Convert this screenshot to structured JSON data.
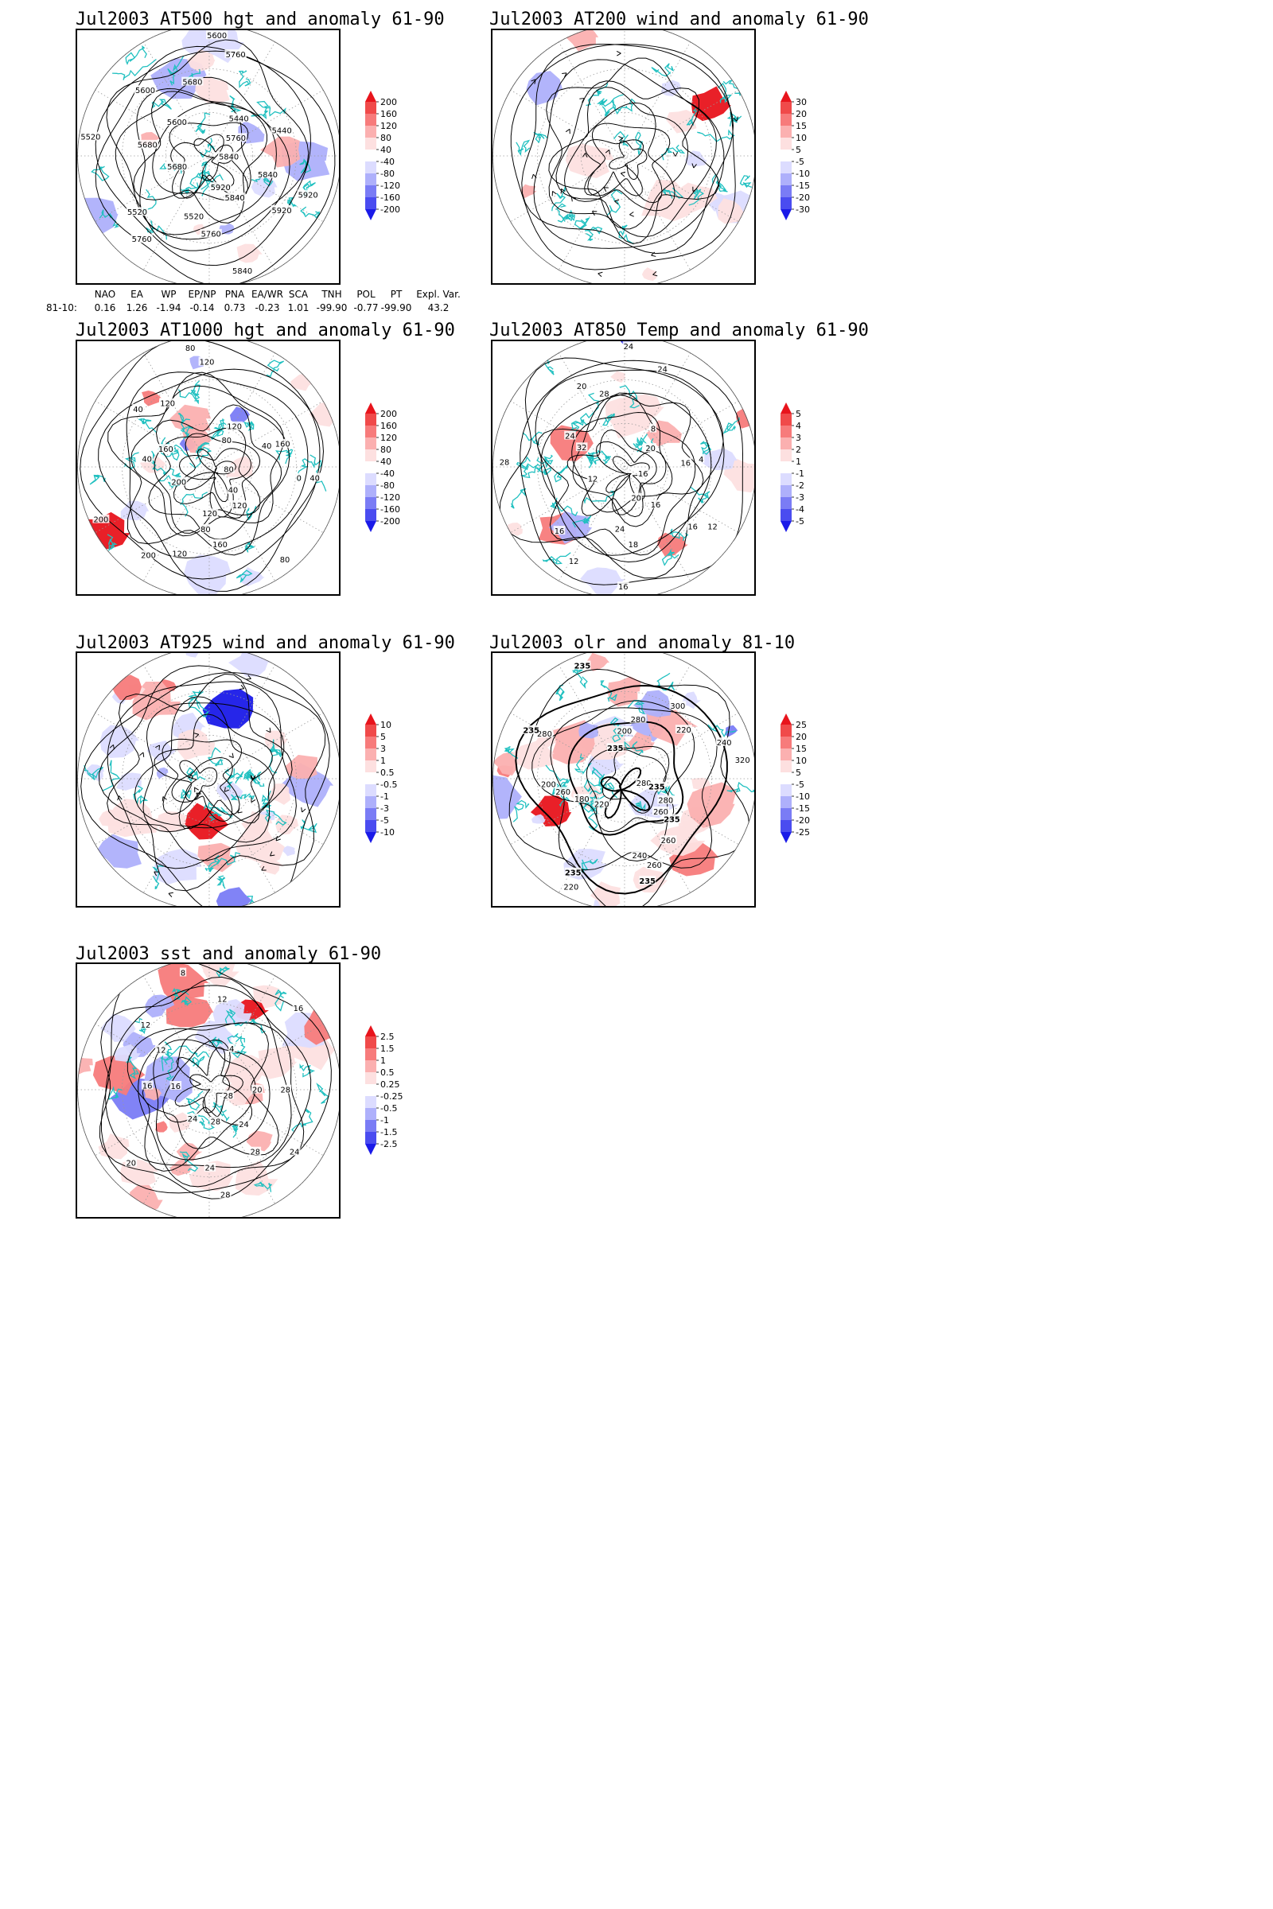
{
  "panels": [
    {
      "id": "p1",
      "title": "Jul2003 AT500 hgt and anomaly 61-90",
      "kind": "contour",
      "contour_labels": [
        "5840",
        "5840",
        "5760",
        "5760",
        "5680",
        "5680",
        "5600",
        "5600",
        "5440",
        "5440",
        "5920",
        "5920",
        "5520",
        "5520",
        "5520",
        "5600",
        "5680",
        "5760",
        "5760",
        "5840",
        "5920",
        "5840"
      ],
      "colorbar": {
        "labels": [
          "200",
          "160",
          "120",
          "80",
          "40",
          "-40",
          "-80",
          "-120",
          "-160",
          "-200"
        ],
        "colors": [
          "#e8141c",
          "#f04a4a",
          "#f77b7b",
          "#fbb0b0",
          "#fde0e0",
          "#ffffff",
          "#dcdcff",
          "#aeb0fb",
          "#7a7cf5",
          "#4a4cf0",
          "#1a1ae8"
        ]
      }
    },
    {
      "id": "p2",
      "title": "Jul2003 AT200 wind and anomaly 61-90",
      "kind": "stream",
      "contour_labels": [],
      "colorbar": {
        "labels": [
          "30",
          "20",
          "15",
          "10",
          "5",
          "-5",
          "-10",
          "-15",
          "-20",
          "-30"
        ],
        "colors": [
          "#e8141c",
          "#f04a4a",
          "#f77b7b",
          "#fbb0b0",
          "#fde0e0",
          "#ffffff",
          "#dcdcff",
          "#aeb0fb",
          "#7a7cf5",
          "#4a4cf0",
          "#1a1ae8"
        ]
      }
    },
    {
      "id": "p3",
      "title": "Jul2003 AT1000 hgt and anomaly 61-90",
      "kind": "contour",
      "contour_labels": [
        "80",
        "120",
        "160",
        "200",
        "200",
        "40",
        "40",
        "80",
        "120",
        "160",
        "40",
        "40",
        "80",
        "120",
        "200",
        "160",
        "120",
        "120",
        "80",
        "40",
        "0",
        "80",
        "120"
      ],
      "colorbar": {
        "labels": [
          "200",
          "160",
          "120",
          "80",
          "40",
          "-40",
          "-80",
          "-120",
          "-160",
          "-200"
        ],
        "colors": [
          "#e8141c",
          "#f04a4a",
          "#f77b7b",
          "#fbb0b0",
          "#fde0e0",
          "#ffffff",
          "#dcdcff",
          "#aeb0fb",
          "#7a7cf5",
          "#4a4cf0",
          "#1a1ae8"
        ]
      }
    },
    {
      "id": "p4",
      "title": "Jul2003 AT850 Temp and anomaly 61-90",
      "kind": "contour",
      "contour_labels": [
        "16",
        "16",
        "18",
        "12",
        "12",
        "24",
        "20",
        "24",
        "8",
        "4",
        "12",
        "20",
        "24",
        "16",
        "28",
        "32",
        "28",
        "24",
        "20",
        "16",
        "16",
        "16"
      ],
      "colorbar": {
        "labels": [
          "5",
          "4",
          "3",
          "2",
          "1",
          "-1",
          "-2",
          "-3",
          "-4",
          "-5"
        ],
        "colors": [
          "#e8141c",
          "#f04a4a",
          "#f77b7b",
          "#fbb0b0",
          "#fde0e0",
          "#ffffff",
          "#dcdcff",
          "#aeb0fb",
          "#7a7cf5",
          "#4a4cf0",
          "#1a1ae8"
        ]
      }
    },
    {
      "id": "p5",
      "title": "Jul2003 AT925 wind and anomaly 61-90",
      "kind": "stream",
      "contour_labels": [],
      "colorbar": {
        "labels": [
          "10",
          "5",
          "3",
          "1",
          "0.5",
          "-0.5",
          "-1",
          "-3",
          "-5",
          "-10"
        ],
        "colors": [
          "#e8141c",
          "#f04a4a",
          "#f77b7b",
          "#fbb0b0",
          "#fde0e0",
          "#ffffff",
          "#dcdcff",
          "#aeb0fb",
          "#7a7cf5",
          "#4a4cf0",
          "#1a1ae8"
        ]
      }
    },
    {
      "id": "p6",
      "title": "Jul2003 olr and anomaly 81-10",
      "kind": "olr",
      "contour_labels": [
        "280",
        "260",
        "240",
        "235",
        "220",
        "260",
        "280",
        "235",
        "200",
        "220",
        "240",
        "235",
        "235",
        "260",
        "220",
        "180",
        "200",
        "235",
        "235",
        "280",
        "300",
        "320",
        "280",
        "260",
        "235"
      ],
      "colorbar": {
        "labels": [
          "25",
          "20",
          "15",
          "10",
          "5",
          "-5",
          "-10",
          "-15",
          "-20",
          "-25"
        ],
        "colors": [
          "#e8141c",
          "#f04a4a",
          "#f77b7b",
          "#fbb0b0",
          "#fde0e0",
          "#ffffff",
          "#dcdcff",
          "#aeb0fb",
          "#7a7cf5",
          "#4a4cf0",
          "#1a1ae8"
        ]
      }
    },
    {
      "id": "p7",
      "title": "Jul2003 sst and anomaly 61-90",
      "kind": "sst",
      "contour_labels": [
        "28",
        "24",
        "24",
        "20",
        "16",
        "12",
        "12",
        "16",
        "20",
        "28",
        "28",
        "24",
        "16",
        "12",
        "8",
        "4",
        "28",
        "24",
        "28"
      ],
      "colorbar": {
        "labels": [
          "2.5",
          "1.5",
          "1",
          "0.5",
          "0.25",
          "-0.25",
          "-0.5",
          "-1",
          "-1.5",
          "-2.5"
        ],
        "colors": [
          "#e8141c",
          "#f04a4a",
          "#f77b7b",
          "#fbb0b0",
          "#fde0e0",
          "#ffffff",
          "#dcdcff",
          "#aeb0fb",
          "#7a7cf5",
          "#4a4cf0",
          "#1a1ae8"
        ]
      }
    }
  ],
  "index_table": {
    "headers": [
      "",
      "NAO",
      "EA",
      "WP",
      "EP/NP",
      "PNA",
      "EA/WR",
      "SCA",
      "TNH",
      "POL",
      "PT",
      "Expl. Var."
    ],
    "row_label": "81-10:",
    "values": [
      "0.16",
      "1.26",
      "-1.94",
      "-0.14",
      "0.73",
      "-0.23",
      "1.01",
      "-99.90",
      "-0.77",
      "-99.90",
      "43.2"
    ]
  },
  "colors": {
    "coast": "#20c0c0",
    "contour": "#000000",
    "grid": "#9a9a9a",
    "warm": "#e8141c",
    "cool": "#1a1ae8"
  }
}
